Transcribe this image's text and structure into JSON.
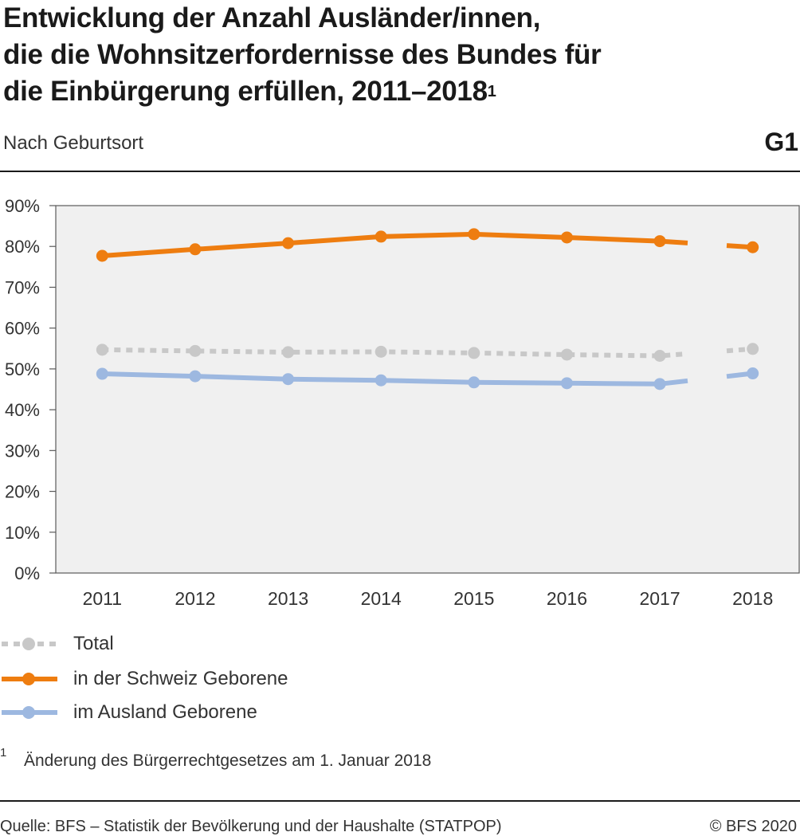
{
  "header": {
    "title_lines": [
      "Entwicklung der Anzahl Ausländer/innen,",
      "die die Wohnsitzerfordernisse des Bundes für",
      "die Einbürgerung erfüllen, 2011–2018"
    ],
    "title_footnote_mark": "1",
    "subtitle": "Nach Geburtsort",
    "graphic_code": "G1"
  },
  "chart_data": {
    "type": "line",
    "categories": [
      "2011",
      "2012",
      "2013",
      "2014",
      "2015",
      "2016",
      "2017",
      "2018"
    ],
    "y_ticks": [
      "0%",
      "10%",
      "20%",
      "30%",
      "40%",
      "50%",
      "60%",
      "70%",
      "80%",
      "90%"
    ],
    "ylim": [
      0,
      90
    ],
    "y_unit": "%",
    "grid": false,
    "plot_background": "#f0f0f0",
    "break_between": [
      "2017",
      "2018"
    ],
    "series": [
      {
        "name": "Total",
        "values": [
          54.7,
          54.4,
          54.1,
          54.2,
          53.9,
          53.5,
          53.2,
          54.9
        ],
        "color": "#c8c8c8",
        "style": "dotted"
      },
      {
        "name": "in der Schweiz Geborene",
        "values": [
          77.7,
          79.3,
          80.8,
          82.4,
          83.0,
          82.2,
          81.3,
          79.8
        ],
        "color": "#ee7d10",
        "style": "solid"
      },
      {
        "name": "im Ausland Geborene",
        "values": [
          48.8,
          48.2,
          47.5,
          47.2,
          46.7,
          46.5,
          46.3,
          48.9
        ],
        "color": "#9db8e0",
        "style": "solid"
      }
    ],
    "legend_position": "bottom-left"
  },
  "footnote": {
    "mark": "1",
    "text": "Änderung des Bürgerrechtgesetzes am 1. Januar 2018"
  },
  "footer": {
    "source": "Quelle: BFS – Statistik der Bevölkerung und der Haushalte (STATPOP)",
    "copyright": "© BFS 2020"
  }
}
